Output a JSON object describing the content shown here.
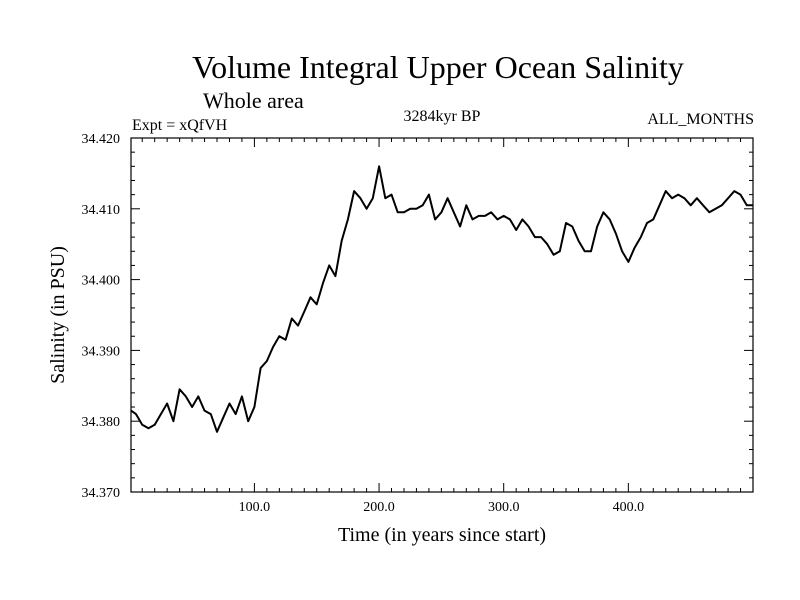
{
  "chart_data": {
    "type": "line",
    "title": "Volume Integral Upper Ocean Salinity",
    "subtitle": "Whole area",
    "experiment": "Expt = xQfVH",
    "period": "3284kyr BP",
    "months": "ALL_MONTHS",
    "xlabel": "Time (in years since start)",
    "ylabel": "Salinity (in PSU)",
    "xlim": [
      1,
      500
    ],
    "ylim": [
      34.37,
      34.42
    ],
    "x_ticks": [
      100,
      200,
      300,
      400
    ],
    "x_tick_labels": [
      "100.0",
      "200.0",
      "300.0",
      "400.0"
    ],
    "y_ticks": [
      34.37,
      34.38,
      34.39,
      34.4,
      34.41,
      34.42
    ],
    "y_tick_labels": [
      "34.370",
      "34.380",
      "34.390",
      "34.400",
      "34.410",
      "34.420"
    ],
    "series": [
      {
        "name": "salinity",
        "x": [
          1,
          5,
          10,
          15,
          20,
          25,
          30,
          35,
          40,
          45,
          50,
          55,
          60,
          65,
          70,
          75,
          80,
          85,
          90,
          95,
          100,
          105,
          110,
          115,
          120,
          125,
          130,
          135,
          140,
          145,
          150,
          155,
          160,
          165,
          170,
          175,
          180,
          185,
          190,
          195,
          200,
          205,
          210,
          215,
          220,
          225,
          230,
          235,
          240,
          245,
          250,
          255,
          260,
          265,
          270,
          275,
          280,
          285,
          290,
          295,
          300,
          305,
          310,
          315,
          320,
          325,
          330,
          335,
          340,
          345,
          350,
          355,
          360,
          365,
          370,
          375,
          380,
          385,
          390,
          395,
          400,
          405,
          410,
          415,
          420,
          425,
          430,
          435,
          440,
          445,
          450,
          455,
          460,
          465,
          470,
          475,
          480,
          485,
          490,
          495,
          500
        ],
        "values": [
          34.3815,
          34.381,
          34.3795,
          34.379,
          34.3795,
          34.381,
          34.3825,
          34.38,
          34.3845,
          34.3835,
          34.382,
          34.3835,
          34.3815,
          34.381,
          34.3785,
          34.3805,
          34.3825,
          34.381,
          34.3835,
          34.38,
          34.382,
          34.3875,
          34.3885,
          34.3905,
          34.392,
          34.3915,
          34.3945,
          34.3935,
          34.3955,
          34.3975,
          34.3965,
          34.3995,
          34.402,
          34.4005,
          34.4055,
          34.4085,
          34.4125,
          34.4115,
          34.41,
          34.4115,
          34.416,
          34.4115,
          34.412,
          34.4095,
          34.4095,
          34.41,
          34.41,
          34.4105,
          34.412,
          34.4085,
          34.4095,
          34.4115,
          34.4095,
          34.4075,
          34.4105,
          34.4085,
          34.409,
          34.409,
          34.4095,
          34.4085,
          34.409,
          34.4085,
          34.407,
          34.4085,
          34.4075,
          34.406,
          34.406,
          34.405,
          34.4035,
          34.404,
          34.408,
          34.4075,
          34.4055,
          34.404,
          34.404,
          34.4075,
          34.4095,
          34.4085,
          34.4065,
          34.404,
          34.4025,
          34.4045,
          34.406,
          34.408,
          34.4085,
          34.4105,
          34.4125,
          34.4115,
          34.412,
          34.4115,
          34.4105,
          34.4115,
          34.4105,
          34.4095,
          34.41,
          34.4105,
          34.4115,
          34.4125,
          34.412,
          34.4105,
          34.4105
        ]
      }
    ]
  }
}
